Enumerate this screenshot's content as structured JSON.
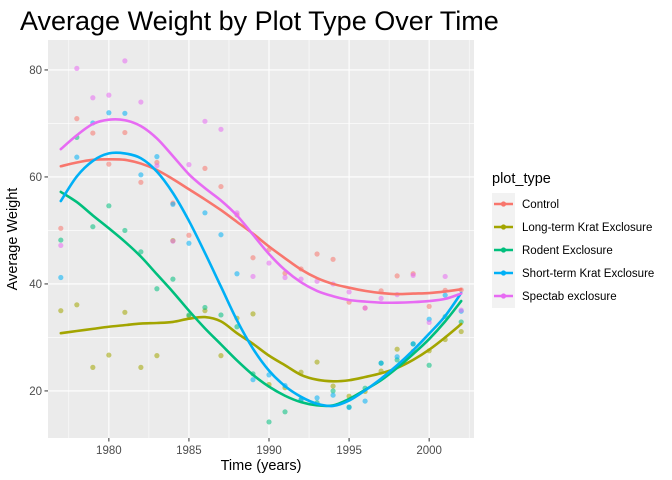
{
  "chart_data": {
    "type": "scatter",
    "title": "Average Weight by Plot Type Over Time",
    "xlabel": "Time (years)",
    "ylabel": "Average Weight",
    "xlim": [
      1976.2,
      2002.8
    ],
    "ylim": [
      11.2,
      85.6
    ],
    "x_ticks": [
      1980,
      1985,
      1990,
      1995,
      2000
    ],
    "y_ticks": [
      20,
      40,
      60,
      80
    ],
    "grid": true,
    "legend": {
      "title": "plot_type",
      "position": "right"
    },
    "series": [
      {
        "name": "Control",
        "color": "#F8766D",
        "points": [
          [
            1977,
            50.4
          ],
          [
            1978,
            70.9
          ],
          [
            1979,
            68.2
          ],
          [
            1980,
            62.4
          ],
          [
            1981,
            68.3
          ],
          [
            1982,
            59.0
          ],
          [
            1983,
            62.7
          ],
          [
            1984,
            55.1
          ],
          [
            1985,
            49.1
          ],
          [
            1986,
            61.6
          ],
          [
            1987,
            58.2
          ],
          [
            1988,
            52.9
          ],
          [
            1989,
            44.9
          ],
          [
            1990,
            46.4
          ],
          [
            1991,
            42.0
          ],
          [
            1992,
            42.8
          ],
          [
            1993,
            45.6
          ],
          [
            1994,
            44.6
          ],
          [
            1995,
            36.6
          ],
          [
            1996,
            35.5
          ],
          [
            1997,
            38.7
          ],
          [
            1998,
            41.5
          ],
          [
            1999,
            41.9
          ],
          [
            2000,
            35.8
          ],
          [
            2001,
            38.8
          ],
          [
            2002,
            38.9
          ]
        ],
        "smooth": [
          [
            1977,
            62.0
          ],
          [
            1978,
            62.7
          ],
          [
            1979,
            63.2
          ],
          [
            1980,
            63.3
          ],
          [
            1981,
            63.2
          ],
          [
            1982,
            62.5
          ],
          [
            1983,
            61.3
          ],
          [
            1984,
            59.6
          ],
          [
            1985,
            57.7
          ],
          [
            1986,
            55.8
          ],
          [
            1987,
            53.8
          ],
          [
            1988,
            51.6
          ],
          [
            1989,
            49.4
          ],
          [
            1990,
            47.0
          ],
          [
            1991,
            44.8
          ],
          [
            1992,
            42.7
          ],
          [
            1993,
            41.1
          ],
          [
            1994,
            40.0
          ],
          [
            1995,
            39.3
          ],
          [
            1996,
            38.7
          ],
          [
            1997,
            38.3
          ],
          [
            1998,
            38.1
          ],
          [
            1999,
            38.2
          ],
          [
            2000,
            38.3
          ],
          [
            2001,
            38.6
          ],
          [
            2002,
            39.0
          ]
        ]
      },
      {
        "name": "Long-term Krat Exclosure",
        "color": "#A3A500",
        "points": [
          [
            1977,
            35.0
          ],
          [
            1978,
            36.1
          ],
          [
            1979,
            24.4
          ],
          [
            1980,
            26.7
          ],
          [
            1981,
            34.7
          ],
          [
            1982,
            24.4
          ],
          [
            1983,
            26.6
          ],
          [
            1984,
            48.1
          ],
          [
            1985,
            34.0
          ],
          [
            1986,
            35.0
          ],
          [
            1987,
            26.6
          ],
          [
            1988,
            33.6
          ],
          [
            1989,
            34.4
          ],
          [
            1990,
            21.2
          ],
          [
            1991,
            20.6
          ],
          [
            1992,
            23.5
          ],
          [
            1993,
            25.4
          ],
          [
            1994,
            20.9
          ],
          [
            1995,
            19.0
          ],
          [
            1996,
            19.9
          ],
          [
            1997,
            23.7
          ],
          [
            1998,
            27.8
          ],
          [
            1999,
            27.4
          ],
          [
            2000,
            27.5
          ],
          [
            2001,
            29.6
          ],
          [
            2002,
            31.1
          ]
        ],
        "smooth": [
          [
            1977,
            30.8
          ],
          [
            1978,
            31.2
          ],
          [
            1979,
            31.6
          ],
          [
            1980,
            32.0
          ],
          [
            1981,
            32.3
          ],
          [
            1982,
            32.6
          ],
          [
            1983,
            32.7
          ],
          [
            1984,
            32.9
          ],
          [
            1985,
            33.5
          ],
          [
            1986,
            33.8
          ],
          [
            1987,
            33.0
          ],
          [
            1988,
            30.8
          ],
          [
            1989,
            28.8
          ],
          [
            1990,
            26.6
          ],
          [
            1991,
            24.8
          ],
          [
            1992,
            23.0
          ],
          [
            1993,
            22.1
          ],
          [
            1994,
            21.8
          ],
          [
            1995,
            22.0
          ],
          [
            1996,
            22.6
          ],
          [
            1997,
            23.3
          ],
          [
            1998,
            24.3
          ],
          [
            1999,
            25.8
          ],
          [
            2000,
            27.7
          ],
          [
            2001,
            30.0
          ],
          [
            2002,
            32.5
          ]
        ]
      },
      {
        "name": "Rodent Exclosure",
        "color": "#00BF7D",
        "points": [
          [
            1977,
            48.2
          ],
          [
            1978,
            67.4
          ],
          [
            1979,
            50.7
          ],
          [
            1980,
            54.6
          ],
          [
            1981,
            50.0
          ],
          [
            1982,
            46.0
          ],
          [
            1983,
            39.1
          ],
          [
            1984,
            40.9
          ],
          [
            1985,
            34.2
          ],
          [
            1986,
            35.6
          ],
          [
            1987,
            34.2
          ],
          [
            1988,
            32.0
          ],
          [
            1989,
            23.2
          ],
          [
            1990,
            14.2
          ],
          [
            1991,
            16.1
          ],
          [
            1992,
            18.4
          ],
          [
            1993,
            17.8
          ],
          [
            1994,
            20.0
          ],
          [
            1995,
            17.0
          ],
          [
            1996,
            20.5
          ],
          [
            1997,
            25.2
          ],
          [
            1998,
            25.8
          ],
          [
            1999,
            28.8
          ],
          [
            2000,
            24.8
          ],
          [
            2001,
            33.9
          ],
          [
            2002,
            32.9
          ]
        ],
        "smooth": [
          [
            1977,
            57.2
          ],
          [
            1978,
            55.3
          ],
          [
            1979,
            52.8
          ],
          [
            1980,
            50.4
          ],
          [
            1981,
            47.9
          ],
          [
            1982,
            45.1
          ],
          [
            1983,
            41.8
          ],
          [
            1984,
            38.5
          ],
          [
            1985,
            35.0
          ],
          [
            1986,
            31.7
          ],
          [
            1987,
            28.7
          ],
          [
            1988,
            25.7
          ],
          [
            1989,
            23.0
          ],
          [
            1990,
            20.8
          ],
          [
            1991,
            19.1
          ],
          [
            1992,
            17.9
          ],
          [
            1993,
            17.3
          ],
          [
            1994,
            17.3
          ],
          [
            1995,
            18.5
          ],
          [
            1996,
            20.2
          ],
          [
            1997,
            22.0
          ],
          [
            1998,
            24.3
          ],
          [
            1999,
            26.9
          ],
          [
            2000,
            29.7
          ],
          [
            2001,
            33.0
          ],
          [
            2002,
            36.8
          ]
        ]
      },
      {
        "name": "Short-term Krat Exclosure",
        "color": "#00B0F6",
        "points": [
          [
            1977,
            41.2
          ],
          [
            1978,
            63.7
          ],
          [
            1979,
            70.1
          ],
          [
            1980,
            72.0
          ],
          [
            1981,
            71.9
          ],
          [
            1982,
            60.4
          ],
          [
            1983,
            63.8
          ],
          [
            1984,
            54.9
          ],
          [
            1985,
            47.6
          ],
          [
            1986,
            53.3
          ],
          [
            1987,
            49.2
          ],
          [
            1988,
            41.9
          ],
          [
            1989,
            22.1
          ],
          [
            1990,
            23.0
          ],
          [
            1991,
            21.0
          ],
          [
            1992,
            18.3
          ],
          [
            1993,
            18.7
          ],
          [
            1994,
            19.2
          ],
          [
            1995,
            16.9
          ],
          [
            1996,
            18.1
          ],
          [
            1997,
            25.2
          ],
          [
            1998,
            26.4
          ],
          [
            1999,
            28.8
          ],
          [
            2000,
            33.4
          ],
          [
            2001,
            37.9
          ],
          [
            2002,
            34.9
          ]
        ],
        "smooth": [
          [
            1977,
            55.5
          ],
          [
            1978,
            60.1
          ],
          [
            1979,
            63.0
          ],
          [
            1980,
            64.4
          ],
          [
            1981,
            64.4
          ],
          [
            1982,
            63.5
          ],
          [
            1983,
            61.0
          ],
          [
            1984,
            57.0
          ],
          [
            1985,
            51.8
          ],
          [
            1986,
            45.8
          ],
          [
            1987,
            39.5
          ],
          [
            1988,
            33.2
          ],
          [
            1989,
            27.9
          ],
          [
            1990,
            23.8
          ],
          [
            1991,
            20.9
          ],
          [
            1992,
            18.9
          ],
          [
            1993,
            17.6
          ],
          [
            1994,
            17.2
          ],
          [
            1995,
            18.2
          ],
          [
            1996,
            20.1
          ],
          [
            1997,
            22.3
          ],
          [
            1998,
            24.8
          ],
          [
            1999,
            27.6
          ],
          [
            2000,
            30.7
          ],
          [
            2001,
            34.0
          ],
          [
            2002,
            38.3
          ]
        ]
      },
      {
        "name": "Spectab exclosure",
        "color": "#E76BF3",
        "points": [
          [
            1977,
            47.2
          ],
          [
            1978,
            80.3
          ],
          [
            1979,
            74.8
          ],
          [
            1980,
            75.3
          ],
          [
            1981,
            81.7
          ],
          [
            1982,
            74.0
          ],
          [
            1983,
            62.1
          ],
          [
            1984,
            48.0
          ],
          [
            1985,
            62.3
          ],
          [
            1986,
            70.4
          ],
          [
            1987,
            68.9
          ],
          [
            1988,
            53.3
          ],
          [
            1989,
            41.4
          ],
          [
            1990,
            43.9
          ],
          [
            1991,
            41.2
          ],
          [
            1992,
            40.9
          ],
          [
            1993,
            40.5
          ],
          [
            1994,
            40.0
          ],
          [
            1995,
            38.5
          ],
          [
            1996,
            35.5
          ],
          [
            1997,
            37.3
          ],
          [
            1998,
            38.0
          ],
          [
            1999,
            41.6
          ],
          [
            2000,
            32.8
          ],
          [
            2001,
            41.4
          ],
          [
            2002,
            35.1
          ]
        ],
        "smooth": [
          [
            1977,
            65.2
          ],
          [
            1978,
            67.8
          ],
          [
            1979,
            69.9
          ],
          [
            1980,
            70.7
          ],
          [
            1981,
            70.6
          ],
          [
            1982,
            69.5
          ],
          [
            1983,
            67.2
          ],
          [
            1984,
            63.9
          ],
          [
            1985,
            60.5
          ],
          [
            1986,
            57.9
          ],
          [
            1987,
            55.6
          ],
          [
            1988,
            52.8
          ],
          [
            1989,
            49.2
          ],
          [
            1990,
            45.6
          ],
          [
            1991,
            42.6
          ],
          [
            1992,
            40.3
          ],
          [
            1993,
            38.7
          ],
          [
            1994,
            37.7
          ],
          [
            1995,
            37.0
          ],
          [
            1996,
            36.7
          ],
          [
            1997,
            36.5
          ],
          [
            1998,
            36.5
          ],
          [
            1999,
            36.6
          ],
          [
            2000,
            36.8
          ],
          [
            2001,
            37.2
          ],
          [
            2002,
            38.2
          ]
        ]
      }
    ]
  }
}
